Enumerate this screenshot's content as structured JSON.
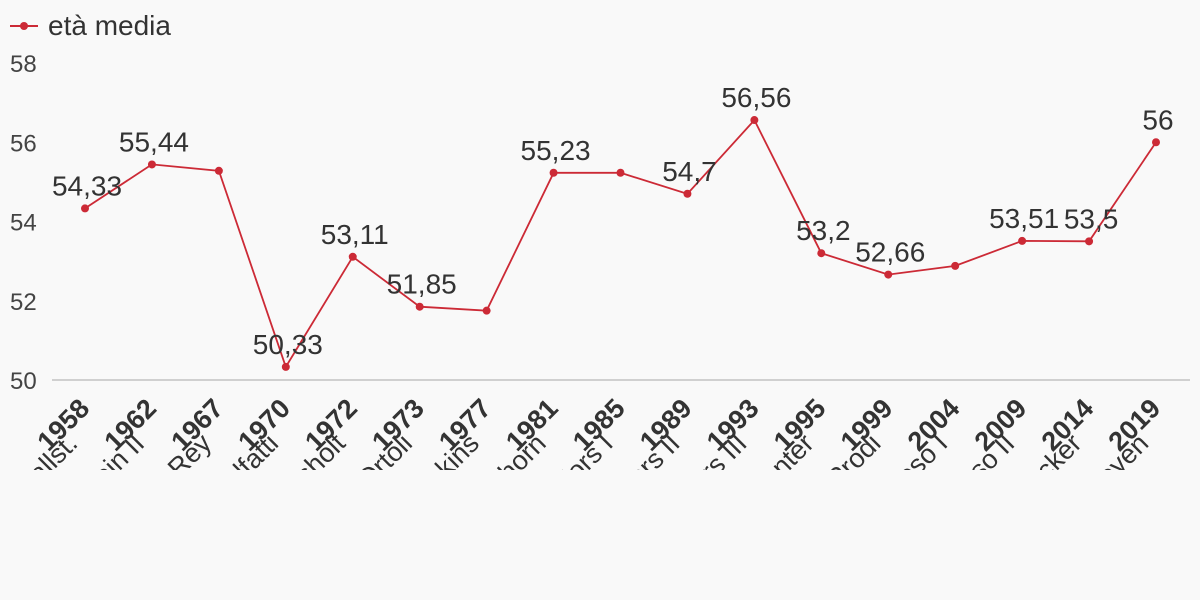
{
  "colors": {
    "series": "#cc2a36",
    "baseline": "#d0d0d0",
    "text": "#333333"
  },
  "chart_data": {
    "type": "line",
    "title": "",
    "xlabel": "",
    "ylabel": "",
    "ylim": [
      50,
      58
    ],
    "yticks": [
      "50",
      "52",
      "54",
      "56",
      "58"
    ],
    "grid": false,
    "legend_position": "top-left",
    "x": [
      "1958",
      "1962",
      "1967",
      "1970",
      "1972",
      "1973",
      "1977",
      "1981",
      "1985",
      "1989",
      "1993",
      "1995",
      "1999",
      "2004",
      "2009",
      "2014",
      "2019"
    ],
    "x_names": [
      "Hallst.",
      "Hallstein II",
      "Rey",
      "Malfatti",
      "Mansholt",
      "Ortoli",
      "Jenkins",
      "Thorn",
      "Delors I",
      "Delors II",
      "Delors III",
      "Santer",
      "Prodi",
      "Barroso I",
      "Barroso II",
      "Juncker",
      "von der Leyen"
    ],
    "series": [
      {
        "name": "età media",
        "values": [
          54.33,
          55.44,
          55.28,
          50.33,
          53.11,
          51.85,
          51.75,
          55.23,
          55.23,
          54.7,
          56.56,
          53.2,
          52.66,
          52.88,
          53.51,
          53.5,
          56
        ],
        "labels": [
          "54,33",
          "55,44",
          "",
          "50,33",
          "53,11",
          "51,85",
          "",
          "55,23",
          "",
          "54,7",
          "56,56",
          "53,2",
          "52,66",
          "",
          "53,51",
          "53,5",
          "56"
        ]
      }
    ]
  }
}
